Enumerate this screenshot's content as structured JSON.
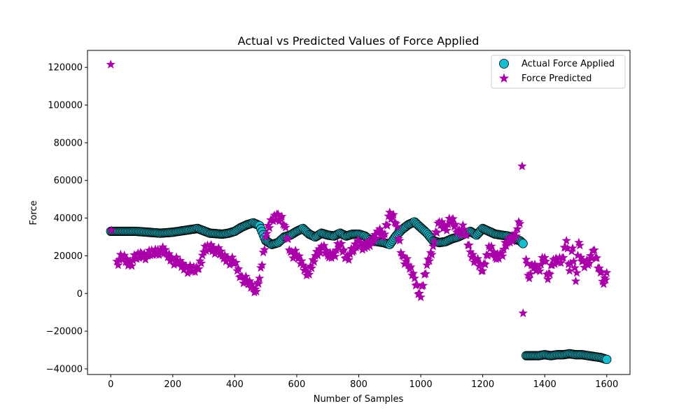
{
  "chart_data": {
    "type": "scatter",
    "title": "Actual vs Predicted Values of Force Applied",
    "xlabel": "Number of Samples",
    "ylabel": "Force",
    "xlim": [
      -75,
      1675
    ],
    "ylim": [
      -43000,
      129000
    ],
    "xticks": [
      0,
      200,
      400,
      600,
      800,
      1000,
      1200,
      1400,
      1600
    ],
    "yticks": [
      -40000,
      -20000,
      0,
      20000,
      40000,
      60000,
      80000,
      100000,
      120000
    ],
    "grid": false,
    "legend_position": "upper right",
    "series": [
      {
        "name": "Actual Force Applied",
        "marker": "circle",
        "color": "#17becf",
        "edge_color": "#000000",
        "x": [
          0,
          40,
          80,
          120,
          160,
          200,
          240,
          280,
          320,
          360,
          380,
          400,
          420,
          440,
          460,
          480,
          500,
          520,
          540,
          560,
          580,
          600,
          620,
          640,
          660,
          680,
          700,
          720,
          740,
          760,
          780,
          800,
          820,
          840,
          860,
          880,
          900,
          920,
          940,
          960,
          980,
          1000,
          1020,
          1040,
          1060,
          1080,
          1100,
          1120,
          1140,
          1160,
          1180,
          1200,
          1220,
          1240,
          1260,
          1280,
          1300,
          1320,
          1330,
          1340,
          1360,
          1380,
          1400,
          1420,
          1440,
          1460,
          1480,
          1500,
          1520,
          1540,
          1560,
          1580,
          1600
        ],
        "y": [
          33000,
          33000,
          33000,
          32500,
          32000,
          32500,
          33500,
          34500,
          32000,
          31500,
          32000,
          33000,
          35000,
          36500,
          37500,
          36000,
          28000,
          26000,
          27000,
          30000,
          31000,
          33000,
          34500,
          31500,
          30000,
          32000,
          31000,
          30500,
          32000,
          30500,
          31500,
          31500,
          30500,
          28000,
          27500,
          27000,
          26000,
          30500,
          34000,
          36500,
          38000,
          35000,
          32000,
          28000,
          27000,
          27500,
          29000,
          30000,
          31500,
          33000,
          31000,
          34500,
          33000,
          31500,
          31000,
          30500,
          29000,
          28000,
          26500,
          -33000,
          -33000,
          -33000,
          -32500,
          -33000,
          -32500,
          -32500,
          -32000,
          -32500,
          -32500,
          -33000,
          -33500,
          -34000,
          -35000
        ]
      },
      {
        "name": "Force Predicted",
        "marker": "star",
        "color": "#aa00aa",
        "x": [
          0,
          2,
          20,
          40,
          60,
          80,
          100,
          120,
          140,
          160,
          180,
          200,
          220,
          240,
          260,
          280,
          300,
          320,
          340,
          360,
          380,
          400,
          420,
          440,
          460,
          470,
          480,
          500,
          520,
          540,
          560,
          580,
          600,
          620,
          640,
          660,
          680,
          700,
          720,
          740,
          760,
          780,
          800,
          820,
          840,
          860,
          880,
          900,
          920,
          940,
          960,
          980,
          1000,
          1020,
          1040,
          1060,
          1080,
          1100,
          1120,
          1140,
          1160,
          1180,
          1200,
          1220,
          1240,
          1260,
          1280,
          1300,
          1320,
          1327,
          1330,
          1340,
          1350,
          1360,
          1380,
          1400,
          1410,
          1420,
          1440,
          1460,
          1470,
          1480,
          1490,
          1500,
          1510,
          1520,
          1540,
          1560,
          1580,
          1590,
          1600
        ],
        "y": [
          121500,
          33500,
          17000,
          19000,
          16000,
          18500,
          21000,
          20000,
          22000,
          23000,
          21000,
          18000,
          16000,
          14000,
          12000,
          13000,
          22000,
          25000,
          23000,
          20000,
          18000,
          16000,
          9000,
          6000,
          3000,
          1000,
          8000,
          30000,
          39000,
          42000,
          36000,
          22000,
          20000,
          15000,
          10000,
          20000,
          25000,
          20000,
          21000,
          26000,
          19000,
          22000,
          28000,
          24000,
          27000,
          33000,
          30000,
          43000,
          37000,
          20000,
          15000,
          8000,
          -2000,
          15000,
          25000,
          38000,
          35000,
          39000,
          33000,
          34000,
          22000,
          17000,
          12000,
          25000,
          19000,
          21000,
          27000,
          30000,
          37000,
          67500,
          -10500,
          18000,
          8000,
          15000,
          13000,
          19000,
          7500,
          15000,
          18000,
          19000,
          28000,
          12000,
          24000,
          6500,
          27000,
          17000,
          15000,
          23000,
          11000,
          5000,
          11000
        ]
      }
    ]
  }
}
